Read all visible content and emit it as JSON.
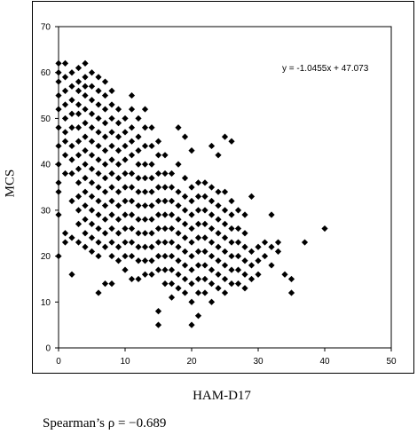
{
  "chart_data": {
    "type": "scatter",
    "title": "",
    "xlabel": "HAM-D17",
    "ylabel": "MCS",
    "xlim": [
      0,
      50
    ],
    "ylim": [
      0,
      70
    ],
    "xticks": [
      0,
      10,
      20,
      30,
      40,
      50
    ],
    "yticks": [
      0,
      10,
      20,
      30,
      40,
      50,
      60,
      70
    ],
    "grid": false,
    "marker": "diamond",
    "marker_color": "#000000",
    "annotation": "y = -1.0455x + 47.073",
    "trendline": {
      "slope": -1.0455,
      "intercept": 47.073,
      "shown": false
    },
    "footnote": "Spearman’s ρ = −0.689",
    "points": [
      [
        0,
        62
      ],
      [
        0,
        60
      ],
      [
        0,
        58
      ],
      [
        0,
        55
      ],
      [
        0,
        52
      ],
      [
        0,
        48
      ],
      [
        0,
        44
      ],
      [
        0,
        40
      ],
      [
        0,
        36
      ],
      [
        0,
        34
      ],
      [
        0,
        29
      ],
      [
        0,
        20
      ],
      [
        1,
        62
      ],
      [
        1,
        59
      ],
      [
        1,
        56
      ],
      [
        1,
        53
      ],
      [
        1,
        50
      ],
      [
        1,
        47
      ],
      [
        1,
        45
      ],
      [
        1,
        42
      ],
      [
        1,
        38
      ],
      [
        1,
        25
      ],
      [
        1,
        23
      ],
      [
        2,
        60
      ],
      [
        2,
        57
      ],
      [
        2,
        54
      ],
      [
        2,
        51
      ],
      [
        2,
        48
      ],
      [
        2,
        44
      ],
      [
        2,
        41
      ],
      [
        2,
        38
      ],
      [
        2,
        32
      ],
      [
        2,
        24
      ],
      [
        2,
        16
      ],
      [
        3,
        61
      ],
      [
        3,
        58
      ],
      [
        3,
        56
      ],
      [
        3,
        53
      ],
      [
        3,
        51
      ],
      [
        3,
        48
      ],
      [
        3,
        45
      ],
      [
        3,
        42
      ],
      [
        3,
        39
      ],
      [
        3,
        36
      ],
      [
        3,
        33
      ],
      [
        3,
        30
      ],
      [
        3,
        27
      ],
      [
        3,
        23
      ],
      [
        4,
        62
      ],
      [
        4,
        59
      ],
      [
        4,
        57
      ],
      [
        4,
        55
      ],
      [
        4,
        52
      ],
      [
        4,
        49
      ],
      [
        4,
        46
      ],
      [
        4,
        43
      ],
      [
        4,
        40
      ],
      [
        4,
        37
      ],
      [
        4,
        34
      ],
      [
        4,
        31
      ],
      [
        4,
        28
      ],
      [
        4,
        25
      ],
      [
        4,
        22
      ],
      [
        5,
        60
      ],
      [
        5,
        57
      ],
      [
        5,
        54
      ],
      [
        5,
        51
      ],
      [
        5,
        48
      ],
      [
        5,
        45
      ],
      [
        5,
        42
      ],
      [
        5,
        39
      ],
      [
        5,
        36
      ],
      [
        5,
        33
      ],
      [
        5,
        30
      ],
      [
        5,
        27
      ],
      [
        5,
        24
      ],
      [
        5,
        21
      ],
      [
        6,
        59
      ],
      [
        6,
        56
      ],
      [
        6,
        53
      ],
      [
        6,
        50
      ],
      [
        6,
        47
      ],
      [
        6,
        44
      ],
      [
        6,
        41
      ],
      [
        6,
        38
      ],
      [
        6,
        35
      ],
      [
        6,
        32
      ],
      [
        6,
        29
      ],
      [
        6,
        26
      ],
      [
        6,
        23
      ],
      [
        6,
        20
      ],
      [
        6,
        12
      ],
      [
        7,
        58
      ],
      [
        7,
        55
      ],
      [
        7,
        52
      ],
      [
        7,
        49
      ],
      [
        7,
        46
      ],
      [
        7,
        43
      ],
      [
        7,
        40
      ],
      [
        7,
        37
      ],
      [
        7,
        34
      ],
      [
        7,
        31
      ],
      [
        7,
        28
      ],
      [
        7,
        25
      ],
      [
        7,
        22
      ],
      [
        7,
        14
      ],
      [
        8,
        56
      ],
      [
        8,
        53
      ],
      [
        8,
        50
      ],
      [
        8,
        47
      ],
      [
        8,
        44
      ],
      [
        8,
        41
      ],
      [
        8,
        38
      ],
      [
        8,
        35
      ],
      [
        8,
        32
      ],
      [
        8,
        29
      ],
      [
        8,
        26
      ],
      [
        8,
        23
      ],
      [
        8,
        20
      ],
      [
        8,
        14
      ],
      [
        9,
        52
      ],
      [
        9,
        49
      ],
      [
        9,
        46
      ],
      [
        9,
        43
      ],
      [
        9,
        40
      ],
      [
        9,
        37
      ],
      [
        9,
        34
      ],
      [
        9,
        31
      ],
      [
        9,
        28
      ],
      [
        9,
        25
      ],
      [
        9,
        22
      ],
      [
        9,
        19
      ],
      [
        10,
        50
      ],
      [
        10,
        47
      ],
      [
        10,
        44
      ],
      [
        10,
        41
      ],
      [
        10,
        38
      ],
      [
        10,
        35
      ],
      [
        10,
        32
      ],
      [
        10,
        29
      ],
      [
        10,
        26
      ],
      [
        10,
        23
      ],
      [
        10,
        20
      ],
      [
        10,
        17
      ],
      [
        11,
        55
      ],
      [
        11,
        52
      ],
      [
        11,
        48
      ],
      [
        11,
        45
      ],
      [
        11,
        42
      ],
      [
        11,
        38
      ],
      [
        11,
        35
      ],
      [
        11,
        32
      ],
      [
        11,
        29
      ],
      [
        11,
        26
      ],
      [
        11,
        23
      ],
      [
        11,
        20
      ],
      [
        11,
        15
      ],
      [
        12,
        50
      ],
      [
        12,
        46
      ],
      [
        12,
        43
      ],
      [
        12,
        40
      ],
      [
        12,
        37
      ],
      [
        12,
        34
      ],
      [
        12,
        31
      ],
      [
        12,
        28
      ],
      [
        12,
        25
      ],
      [
        12,
        22
      ],
      [
        12,
        19
      ],
      [
        12,
        15
      ],
      [
        13,
        52
      ],
      [
        13,
        48
      ],
      [
        13,
        44
      ],
      [
        13,
        40
      ],
      [
        13,
        37
      ],
      [
        13,
        34
      ],
      [
        13,
        31
      ],
      [
        13,
        28
      ],
      [
        13,
        25
      ],
      [
        13,
        22
      ],
      [
        13,
        19
      ],
      [
        13,
        16
      ],
      [
        14,
        48
      ],
      [
        14,
        44
      ],
      [
        14,
        40
      ],
      [
        14,
        37
      ],
      [
        14,
        34
      ],
      [
        14,
        31
      ],
      [
        14,
        28
      ],
      [
        14,
        25
      ],
      [
        14,
        22
      ],
      [
        14,
        19
      ],
      [
        14,
        16
      ],
      [
        15,
        45
      ],
      [
        15,
        42
      ],
      [
        15,
        38
      ],
      [
        15,
        35
      ],
      [
        15,
        32
      ],
      [
        15,
        29
      ],
      [
        15,
        26
      ],
      [
        15,
        23
      ],
      [
        15,
        20
      ],
      [
        15,
        17
      ],
      [
        15,
        8
      ],
      [
        15,
        5
      ],
      [
        16,
        42
      ],
      [
        16,
        38
      ],
      [
        16,
        35
      ],
      [
        16,
        32
      ],
      [
        16,
        29
      ],
      [
        16,
        26
      ],
      [
        16,
        23
      ],
      [
        16,
        20
      ],
      [
        16,
        17
      ],
      [
        16,
        14
      ],
      [
        17,
        38
      ],
      [
        17,
        35
      ],
      [
        17,
        32
      ],
      [
        17,
        29
      ],
      [
        17,
        26
      ],
      [
        17,
        23
      ],
      [
        17,
        20
      ],
      [
        17,
        17
      ],
      [
        17,
        14
      ],
      [
        17,
        11
      ],
      [
        18,
        48
      ],
      [
        18,
        40
      ],
      [
        18,
        34
      ],
      [
        18,
        31
      ],
      [
        18,
        28
      ],
      [
        18,
        25
      ],
      [
        18,
        22
      ],
      [
        18,
        19
      ],
      [
        18,
        16
      ],
      [
        18,
        13
      ],
      [
        19,
        46
      ],
      [
        19,
        37
      ],
      [
        19,
        33
      ],
      [
        19,
        30
      ],
      [
        19,
        27
      ],
      [
        19,
        24
      ],
      [
        19,
        21
      ],
      [
        19,
        18
      ],
      [
        19,
        15
      ],
      [
        19,
        12
      ],
      [
        20,
        43
      ],
      [
        20,
        35
      ],
      [
        20,
        32
      ],
      [
        20,
        29
      ],
      [
        20,
        26
      ],
      [
        20,
        23
      ],
      [
        20,
        20
      ],
      [
        20,
        17
      ],
      [
        20,
        14
      ],
      [
        20,
        10
      ],
      [
        20,
        5
      ],
      [
        21,
        36
      ],
      [
        21,
        33
      ],
      [
        21,
        30
      ],
      [
        21,
        27
      ],
      [
        21,
        24
      ],
      [
        21,
        21
      ],
      [
        21,
        18
      ],
      [
        21,
        15
      ],
      [
        21,
        12
      ],
      [
        21,
        7
      ],
      [
        22,
        36
      ],
      [
        22,
        33
      ],
      [
        22,
        30
      ],
      [
        22,
        27
      ],
      [
        22,
        24
      ],
      [
        22,
        21
      ],
      [
        22,
        18
      ],
      [
        22,
        15
      ],
      [
        22,
        12
      ],
      [
        23,
        44
      ],
      [
        23,
        35
      ],
      [
        23,
        32
      ],
      [
        23,
        29
      ],
      [
        23,
        26
      ],
      [
        23,
        23
      ],
      [
        23,
        20
      ],
      [
        23,
        17
      ],
      [
        23,
        14
      ],
      [
        23,
        10
      ],
      [
        24,
        42
      ],
      [
        24,
        34
      ],
      [
        24,
        31
      ],
      [
        24,
        28
      ],
      [
        24,
        25
      ],
      [
        24,
        22
      ],
      [
        24,
        19
      ],
      [
        24,
        16
      ],
      [
        24,
        13
      ],
      [
        25,
        46
      ],
      [
        25,
        34
      ],
      [
        25,
        30
      ],
      [
        25,
        27
      ],
      [
        25,
        24
      ],
      [
        25,
        21
      ],
      [
        25,
        18
      ],
      [
        25,
        15
      ],
      [
        25,
        12
      ],
      [
        26,
        45
      ],
      [
        26,
        32
      ],
      [
        26,
        29
      ],
      [
        26,
        26
      ],
      [
        26,
        23
      ],
      [
        26,
        20
      ],
      [
        26,
        17
      ],
      [
        26,
        14
      ],
      [
        27,
        30
      ],
      [
        27,
        26
      ],
      [
        27,
        23
      ],
      [
        27,
        20
      ],
      [
        27,
        17
      ],
      [
        27,
        14
      ],
      [
        28,
        29
      ],
      [
        28,
        25
      ],
      [
        28,
        22
      ],
      [
        28,
        19
      ],
      [
        28,
        16
      ],
      [
        28,
        13
      ],
      [
        29,
        33
      ],
      [
        29,
        21
      ],
      [
        29,
        18
      ],
      [
        29,
        15
      ],
      [
        30,
        22
      ],
      [
        30,
        19
      ],
      [
        30,
        16
      ],
      [
        31,
        23
      ],
      [
        31,
        20
      ],
      [
        32,
        29
      ],
      [
        32,
        22
      ],
      [
        32,
        18
      ],
      [
        33,
        23
      ],
      [
        33,
        21
      ],
      [
        34,
        16
      ],
      [
        35,
        15
      ],
      [
        35,
        12
      ],
      [
        37,
        23
      ],
      [
        40,
        26
      ]
    ]
  }
}
